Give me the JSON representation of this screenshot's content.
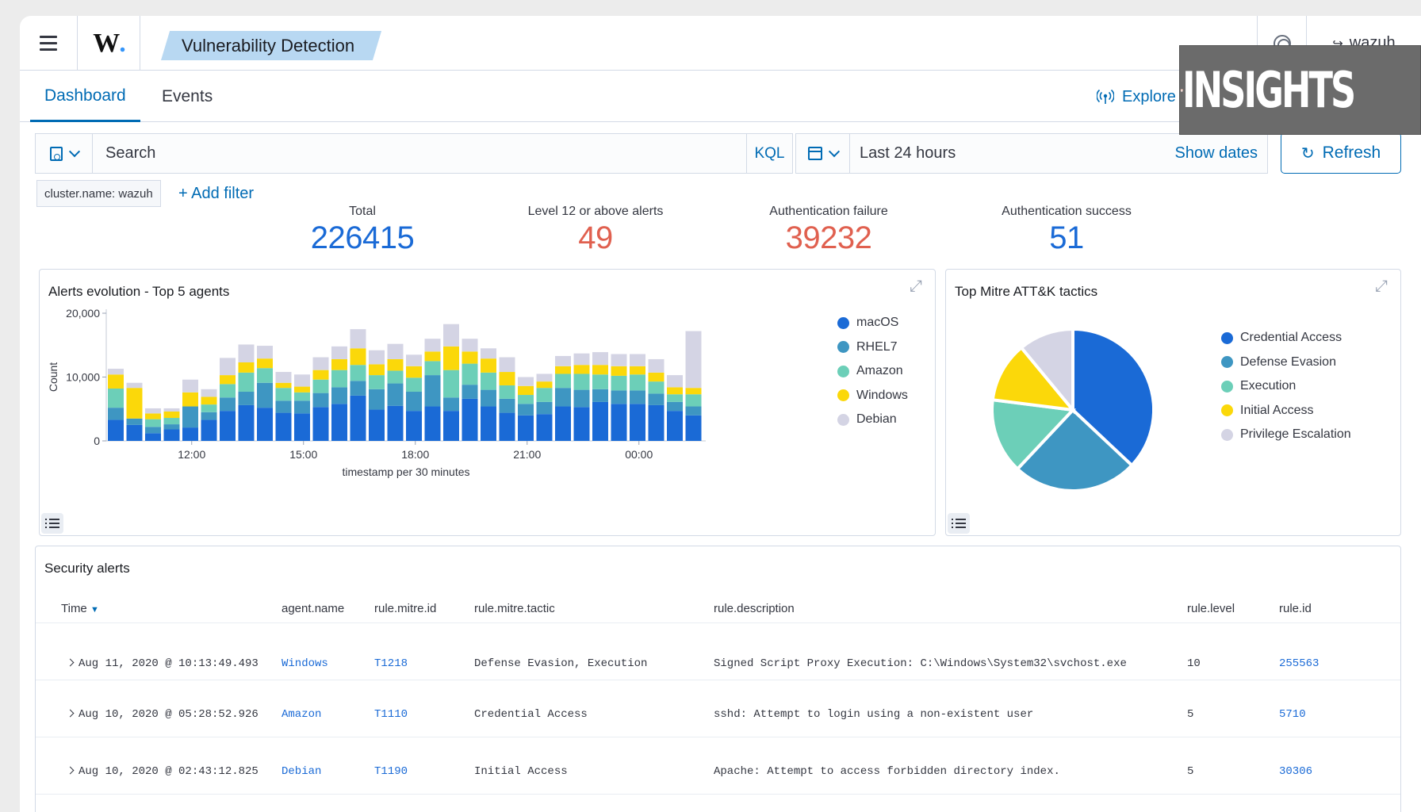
{
  "header": {
    "logo": "W",
    "logo_dot": ".",
    "breadcrumb": "Vulnerability Detection",
    "user": "wazuh"
  },
  "tabs": [
    {
      "label": "Dashboard",
      "active": true
    },
    {
      "label": "Events",
      "active": false
    }
  ],
  "explore_agent": "Explore agent",
  "search": {
    "placeholder": "Search",
    "language": "KQL"
  },
  "date": {
    "range": "Last 24 hours",
    "show_dates": "Show dates"
  },
  "refresh_label": "Refresh",
  "filters": [
    {
      "label": "cluster.name: wazuh"
    }
  ],
  "add_filter": "+ Add filter",
  "metrics": [
    {
      "label": "Total",
      "value": "226415",
      "color": "#1a6ad6"
    },
    {
      "label": "Level 12 or above alerts",
      "value": "49",
      "color": "#e0604f"
    },
    {
      "label": "Authentication failure",
      "value": "39232",
      "color": "#e0604f"
    },
    {
      "label": "Authentication success",
      "value": "51",
      "color": "#1a6ad6"
    }
  ],
  "alerts_chart": {
    "title": "Alerts evolution - Top 5 agents",
    "chart_data": {
      "type": "bar",
      "stacked": true,
      "xlabel": "timestamp per 30 minutes",
      "ylabel": "Count",
      "ylim": [
        0,
        20000
      ],
      "yticks": [
        "0",
        "10,000",
        "20,000"
      ],
      "xticks": [
        "12:00",
        "15:00",
        "18:00",
        "21:00",
        "00:00"
      ],
      "series": [
        {
          "name": "macOS",
          "color": "#1a6ad6",
          "values": [
            3300,
            2500,
            1200,
            1800,
            2100,
            3300,
            4700,
            5600,
            5200,
            4400,
            4300,
            5300,
            5800,
            7100,
            4900,
            5500,
            4700,
            5400,
            4700,
            6600,
            5400,
            4400,
            4000,
            4200,
            5400,
            5300,
            6100,
            5800,
            5800,
            5600,
            4700,
            4000
          ]
        },
        {
          "name": "RHEL7",
          "color": "#3e96c2",
          "values": [
            1900,
            1000,
            1000,
            800,
            3300,
            1200,
            2100,
            2100,
            3900,
            1900,
            2000,
            2200,
            2600,
            2300,
            3200,
            3500,
            3000,
            4900,
            2100,
            2200,
            2600,
            2200,
            1800,
            1900,
            2900,
            2700,
            2000,
            2100,
            2100,
            1800,
            1400,
            1400
          ]
        },
        {
          "name": "Amazon",
          "color": "#6ccfb8",
          "values": [
            3000,
            0,
            1200,
            1000,
            0,
            1200,
            2100,
            3000,
            2300,
            2000,
            1300,
            2100,
            2700,
            2500,
            2200,
            2000,
            2200,
            2200,
            4300,
            3300,
            2700,
            2100,
            1400,
            2200,
            2200,
            2500,
            2300,
            2300,
            2500,
            1900,
            1200,
            1900
          ]
        },
        {
          "name": "Windows",
          "color": "#fbd80a",
          "values": [
            2200,
            4800,
            900,
            1000,
            2200,
            1200,
            1400,
            1600,
            1500,
            800,
            900,
            1500,
            1700,
            2600,
            1700,
            1800,
            1800,
            1500,
            3700,
            1900,
            2200,
            2100,
            1400,
            1000,
            1200,
            1400,
            1500,
            1500,
            1300,
            1400,
            1100,
            1000
          ]
        },
        {
          "name": "Debian",
          "color": "#d4d4e4",
          "values": [
            900,
            800,
            800,
            500,
            2000,
            1200,
            2700,
            2800,
            2000,
            1700,
            1900,
            2000,
            2000,
            3000,
            2200,
            2400,
            1800,
            2000,
            3500,
            2000,
            1600,
            2300,
            1400,
            1200,
            1600,
            1800,
            2000,
            1900,
            1900,
            2100,
            1900,
            8900
          ]
        }
      ]
    }
  },
  "mitre_chart": {
    "title": "Top Mitre ATT&K tactics",
    "chart_data": {
      "type": "pie",
      "labels": [
        "Credential Access",
        "Defense Evasion",
        "Execution",
        "Initial Access",
        "Privilege Escalation"
      ],
      "values": [
        37,
        25,
        15,
        12,
        11
      ],
      "colors": [
        "#1a6ad6",
        "#3e96c2",
        "#6ccfb8",
        "#fbd80a",
        "#d4d4e4"
      ]
    }
  },
  "security_alerts": {
    "title": "Security alerts",
    "columns": [
      "Time",
      "agent.name",
      "rule.mitre.id",
      "rule.mitre.tactic",
      "rule.description",
      "rule.level",
      "rule.id"
    ],
    "rows": [
      {
        "time": "Aug 11, 2020 @ 10:13:49.493",
        "agent": "Windows",
        "mitre_id": "T1218",
        "tactic": "Defense Evasion, Execution",
        "description": "Signed Script Proxy Execution: C:\\Windows\\System32\\svchost.exe",
        "level": "10",
        "rule_id": "255563"
      },
      {
        "time": "Aug 10, 2020 @ 05:28:52.926",
        "agent": "Amazon",
        "mitre_id": "T1110",
        "tactic": "Credential Access",
        "description": "sshd: Attempt to login using a non-existent user",
        "level": "5",
        "rule_id": "5710"
      },
      {
        "time": "Aug 10, 2020 @ 02:43:12.825",
        "agent": "Debian",
        "mitre_id": "T1190",
        "tactic": "Initial Access",
        "description": "Apache: Attempt to access forbidden directory index.",
        "level": "5",
        "rule_id": "30306"
      }
    ]
  },
  "watermark": {
    "text": "INSIGHTS"
  }
}
